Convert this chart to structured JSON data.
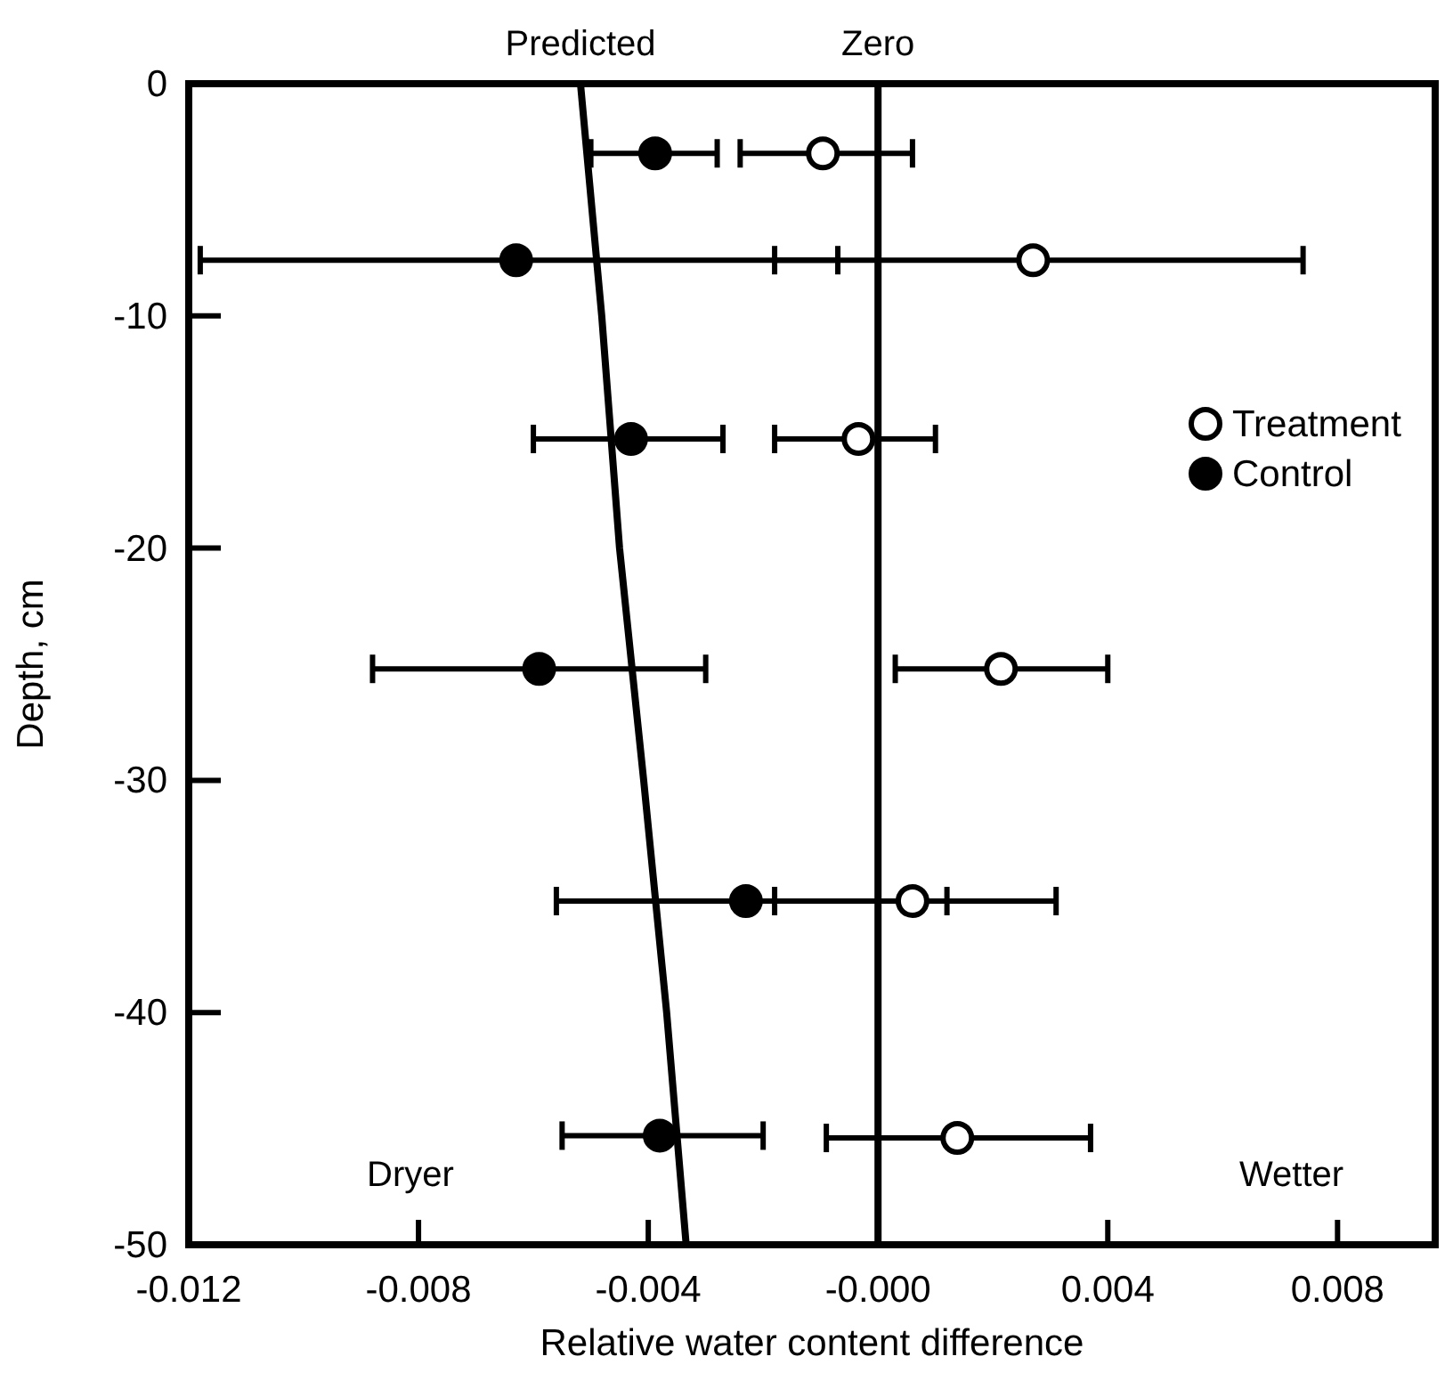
{
  "chart_data": {
    "type": "scatter",
    "xlabel": "Relative water content difference",
    "ylabel": "Depth, cm",
    "xlim": [
      -0.012,
      0.0097
    ],
    "xticks": [
      -0.012,
      -0.008,
      -0.004,
      {
        "value": 0,
        "label": "-0.000"
      },
      0.004,
      0.008
    ],
    "ylim": [
      -50,
      0
    ],
    "yticks": [
      0,
      -10,
      -20,
      -30,
      -40,
      -50
    ],
    "grid": false,
    "legend": "right",
    "marker": "circle",
    "series": [
      {
        "name": "Treatment",
        "color": "#ffffff",
        "x": [
          -0.00096,
          0.0027,
          -0.00034,
          0.00214,
          0.0006,
          0.00138
        ],
        "values": [
          -3.0,
          -7.6,
          -15.3,
          -25.2,
          -35.2,
          -45.4
        ],
        "xerrors": [
          [
            -0.0024,
            0.0006
          ],
          [
            -0.0018,
            0.0074
          ],
          [
            -0.0018,
            0.001
          ],
          [
            0.0003,
            0.004
          ],
          [
            -0.0018,
            0.0031
          ],
          [
            -0.0009,
            0.0037
          ]
        ]
      },
      {
        "name": "Control",
        "color": "#000000",
        "x": [
          -0.00388,
          -0.0063,
          -0.0043,
          -0.0059,
          -0.0023,
          -0.0038
        ],
        "values": [
          -3.0,
          -7.6,
          -15.3,
          -25.2,
          -35.2,
          -45.3
        ],
        "xerrors": [
          [
            -0.005,
            -0.0028
          ],
          [
            -0.0118,
            -0.0007
          ],
          [
            -0.006,
            -0.0027
          ],
          [
            -0.0088,
            -0.003
          ],
          [
            -0.0056,
            0.0012
          ],
          [
            -0.0055,
            -0.002
          ]
        ]
      },
      {
        "name": "Predicted",
        "type": "line",
        "color": "#000000",
        "marker": "none",
        "x": [
          -0.00518,
          -0.00481,
          -0.0045,
          -0.00408,
          -0.00368,
          -0.00334
        ],
        "values": [
          0,
          -10,
          -20,
          -30,
          -40,
          -50
        ]
      }
    ],
    "ref_lines": [
      {
        "axis": "x",
        "value": 0,
        "label": "Zero",
        "color": "#000000"
      }
    ],
    "annotations": [
      "Dryer",
      "Wetter"
    ]
  }
}
